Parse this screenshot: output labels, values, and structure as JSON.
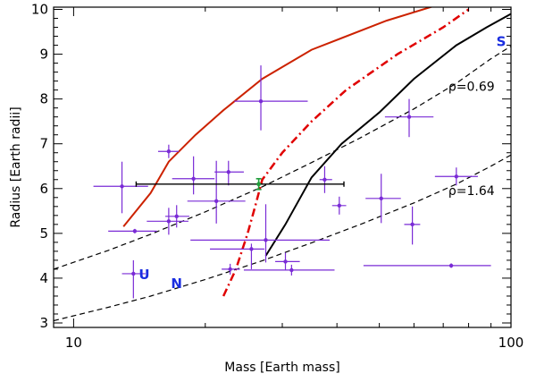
{
  "colors": {
    "planet_points": "#7a2bd6",
    "highlight_point": "#1f9c3a",
    "highlight_errorbar": "#000000",
    "curve_red_solid": "#cc2200",
    "curve_red_dashdot": "#e00000",
    "curve_black_solid": "#000000",
    "solar_planets": "#1a2ee0"
  },
  "chart_data": {
    "type": "scatter",
    "xlabel": "Mass [Earth mass]",
    "ylabel": "Radius [Earth radii]",
    "xscale": "log",
    "xlim": [
      9,
      100
    ],
    "ylim": [
      2.9,
      10.05
    ],
    "xticks": [
      10,
      100
    ],
    "xtick_labels": [
      "10",
      "100"
    ],
    "yticks": [
      3,
      4,
      5,
      6,
      7,
      8,
      9,
      10
    ],
    "ytick_labels": [
      "3",
      "4",
      "5",
      "6",
      "7",
      "8",
      "9",
      "10"
    ],
    "grid": false,
    "points": [
      {
        "x": 12.9,
        "y": 6.05,
        "xerr": [
          1.8,
          1.9
        ],
        "yerr": [
          0.6,
          0.55
        ]
      },
      {
        "x": 13.8,
        "y": 5.05,
        "xerr": [
          1.8,
          1.7
        ],
        "yerr": [
          0.05,
          0.05
        ]
      },
      {
        "x": 13.7,
        "y": 4.1,
        "xerr": [
          0.8,
          0.9
        ],
        "yerr": [
          0.55,
          0.3
        ]
      },
      {
        "x": 16.5,
        "y": 6.83,
        "xerr": [
          0.9,
          0.9
        ],
        "yerr": [
          0.15,
          0.15
        ]
      },
      {
        "x": 16.5,
        "y": 5.27,
        "xerr": [
          1.8,
          1.8
        ],
        "yerr": [
          0.3,
          0.3
        ]
      },
      {
        "x": 17.2,
        "y": 5.38,
        "xerr": [
          1.0,
          1.2
        ],
        "yerr": [
          0.25,
          0.25
        ]
      },
      {
        "x": 18.8,
        "y": 6.22,
        "xerr": [
          2.0,
          2.2
        ],
        "yerr": [
          0.35,
          0.5
        ]
      },
      {
        "x": 21.2,
        "y": 5.72,
        "xerr": [
          3.0,
          3.5
        ],
        "yerr": [
          0.5,
          0.9
        ]
      },
      {
        "x": 22.6,
        "y": 6.37,
        "xerr": [
          1.6,
          1.9
        ],
        "yerr": [
          0.3,
          0.25
        ]
      },
      {
        "x": 22.8,
        "y": 4.2,
        "xerr": [
          1.0,
          1.2
        ],
        "yerr": [
          0.12,
          0.12
        ]
      },
      {
        "x": 26.8,
        "y": 7.95,
        "xerr": [
          3.5,
          7.5
        ],
        "yerr": [
          0.65,
          0.8
        ]
      },
      {
        "x": 25.5,
        "y": 4.65,
        "xerr": [
          5.0,
          1.8
        ],
        "yerr": [
          0.45,
          0.12
        ]
      },
      {
        "x": 27.5,
        "y": 4.85,
        "xerr": [
          9.0,
          11.0
        ],
        "yerr": [
          0.5,
          0.8
        ]
      },
      {
        "x": 30.5,
        "y": 4.37,
        "xerr": [
          1.6,
          2.4
        ],
        "yerr": [
          0.2,
          0.2
        ]
      },
      {
        "x": 31.5,
        "y": 4.18,
        "xerr": [
          7.0,
          8.0
        ],
        "yerr": [
          0.12,
          0.12
        ]
      },
      {
        "x": 37.5,
        "y": 6.2,
        "xerr": [
          1.0,
          1.5
        ],
        "yerr": [
          0.3,
          0.3
        ]
      },
      {
        "x": 40.5,
        "y": 5.62,
        "xerr": [
          1.5,
          1.5
        ],
        "yerr": [
          0.2,
          0.2
        ]
      },
      {
        "x": 50.5,
        "y": 5.78,
        "xerr": [
          4.0,
          5.5
        ],
        "yerr": [
          0.55,
          0.55
        ]
      },
      {
        "x": 58.5,
        "y": 7.6,
        "xerr": [
          7.0,
          8.0
        ],
        "yerr": [
          0.45,
          0.4
        ]
      },
      {
        "x": 59.5,
        "y": 5.2,
        "xerr": [
          2.5,
          2.5
        ],
        "yerr": [
          0.45,
          0.4
        ]
      },
      {
        "x": 75.0,
        "y": 6.27,
        "xerr": [
          8.0,
          9.0
        ],
        "yerr": [
          0.2,
          0.2
        ]
      },
      {
        "x": 73.0,
        "y": 4.28,
        "xerr": [
          27.0,
          17.0
        ],
        "yerr": [
          0.05,
          0.05
        ]
      }
    ],
    "highlight_point": {
      "x": 26.5,
      "y": 6.1,
      "xerr": [
        12.6,
        15.0
      ],
      "yerr": [
        0.12,
        0.12
      ]
    },
    "curves": [
      {
        "style": "solid-red",
        "x": [
          13.0,
          15.0,
          16.5,
          19.0,
          22.0,
          27.0,
          35.0,
          52.0,
          68.0
        ],
        "y": [
          5.15,
          5.9,
          6.6,
          7.2,
          7.75,
          8.45,
          9.1,
          9.75,
          10.1
        ]
      },
      {
        "style": "dashdot-red",
        "x": [
          22.0,
          23.5,
          25.0,
          26.0,
          27.0,
          30.0,
          35.0,
          42.0,
          55.0,
          70.0,
          80.0
        ],
        "y": [
          3.6,
          4.2,
          5.0,
          5.6,
          6.2,
          6.8,
          7.5,
          8.2,
          9.0,
          9.6,
          10.0
        ]
      },
      {
        "style": "solid-black",
        "x": [
          27.5,
          30.5,
          35.0,
          41.0,
          50.0,
          60.0,
          75.0,
          88.0,
          100.0
        ],
        "y": [
          4.5,
          5.2,
          6.25,
          7.0,
          7.7,
          8.45,
          9.2,
          9.6,
          9.9
        ]
      },
      {
        "style": "dashed-black",
        "label": "ρ=0.69",
        "x": [
          9.0,
          12.0,
          15.0,
          20.0,
          27.0,
          35.0,
          45.0,
          60.0,
          75.0,
          90.0,
          100.0
        ],
        "y": [
          4.2,
          4.62,
          4.98,
          5.48,
          6.04,
          6.58,
          7.12,
          7.78,
          8.35,
          8.9,
          9.18
        ]
      },
      {
        "style": "dashed-black",
        "label": "ρ=1.64",
        "x": [
          9.0,
          12.0,
          15.0,
          20.0,
          27.0,
          35.0,
          45.0,
          60.0,
          75.0,
          90.0,
          100.0
        ],
        "y": [
          3.05,
          3.35,
          3.6,
          3.97,
          4.39,
          4.79,
          5.19,
          5.68,
          6.1,
          6.5,
          6.75
        ]
      }
    ],
    "planet_labels": [
      {
        "text": "U",
        "x": 14.5,
        "y": 4.1
      },
      {
        "text": "N",
        "x": 17.2,
        "y": 3.9
      },
      {
        "text": "S",
        "x": 95.0,
        "y": 9.3
      }
    ]
  }
}
